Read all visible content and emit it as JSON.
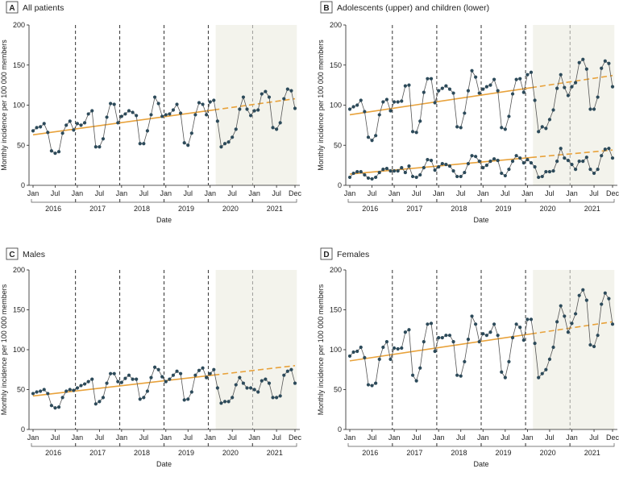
{
  "colors": {
    "points": "#2c4a5a",
    "line": "#555555",
    "trend": "#e8a23b",
    "shade": "#f3f3ec",
    "vline": "#333333"
  },
  "axis": {
    "ylabel": "Monthly incidence per 100 000 members",
    "xlabel": "Date",
    "ylim": [
      0,
      200
    ],
    "yticks": [
      "0",
      "50",
      "100",
      "150",
      "200"
    ],
    "month_ticks": [
      "Jan",
      "Jul",
      "Jan",
      "Jul",
      "Jan",
      "Jul",
      "Jan",
      "Jul",
      "Jan",
      "Jul",
      "Jan",
      "Jul",
      "Dec"
    ],
    "years": [
      "2016",
      "2017",
      "2018",
      "2019",
      "2020",
      "2021"
    ]
  },
  "chart_data": [
    {
      "type": "line",
      "letter": "A",
      "title": "All patients",
      "x_start": "2016-01",
      "x_end": "2021-12",
      "ylim": [
        0,
        200
      ],
      "shaded_period": [
        "2020-03",
        "2021-12"
      ],
      "series": [
        {
          "values": [
            68,
            72,
            73,
            77,
            66,
            43,
            40,
            42,
            65,
            75,
            80,
            69,
            77,
            75,
            78,
            89,
            93,
            48,
            48,
            58,
            85,
            102,
            101,
            78,
            86,
            89,
            93,
            91,
            87,
            52,
            52,
            68,
            88,
            110,
            102,
            86,
            88,
            89,
            94,
            101,
            90,
            53,
            50,
            65,
            88,
            103,
            101,
            88,
            104,
            106,
            80,
            48,
            52,
            54,
            60,
            70,
            95,
            110,
            95,
            87,
            93,
            94,
            114,
            117,
            110,
            72,
            70,
            78,
            108,
            120,
            118,
            96
          ],
          "trend": {
            "start": 63,
            "end": 108
          }
        }
      ]
    },
    {
      "type": "line",
      "letter": "B",
      "title": "Adolescents (upper) and children (lower)",
      "x_start": "2016-01",
      "x_end": "2021-12",
      "ylim": [
        0,
        200
      ],
      "shaded_period": [
        "2020-03",
        "2021-12"
      ],
      "series": [
        {
          "values": [
            95,
            98,
            100,
            106,
            92,
            60,
            56,
            62,
            88,
            104,
            107,
            93,
            104,
            104,
            105,
            124,
            125,
            67,
            66,
            80,
            116,
            133,
            133,
            103,
            118,
            121,
            124,
            120,
            115,
            73,
            72,
            90,
            118,
            143,
            135,
            115,
            120,
            123,
            125,
            132,
            118,
            72,
            70,
            86,
            114,
            132,
            133,
            116,
            138,
            141,
            106,
            67,
            73,
            71,
            82,
            94,
            121,
            138,
            122,
            112,
            123,
            128,
            153,
            157,
            145,
            95,
            95,
            110,
            146,
            155,
            152,
            123
          ],
          "trend": {
            "start": 88,
            "end": 137
          }
        },
        {
          "values": [
            10,
            15,
            17,
            17,
            13,
            9,
            8,
            10,
            16,
            20,
            21,
            18,
            18,
            18,
            22,
            16,
            24,
            11,
            10,
            13,
            22,
            32,
            31,
            19,
            23,
            27,
            26,
            24,
            18,
            11,
            11,
            16,
            27,
            37,
            36,
            30,
            22,
            25,
            30,
            33,
            31,
            15,
            12,
            20,
            30,
            37,
            34,
            28,
            32,
            28,
            23,
            10,
            11,
            17,
            17,
            18,
            30,
            46,
            34,
            31,
            26,
            20,
            30,
            30,
            35,
            20,
            15,
            20,
            37,
            45,
            46,
            34
          ],
          "trend": {
            "start": 14,
            "end": 44
          }
        }
      ]
    },
    {
      "type": "line",
      "letter": "C",
      "title": "Males",
      "x_start": "2016-01",
      "x_end": "2021-12",
      "ylim": [
        0,
        200
      ],
      "shaded_period": [
        "2020-03",
        "2021-12"
      ],
      "series": [
        {
          "values": [
            45,
            47,
            48,
            50,
            45,
            30,
            27,
            28,
            40,
            48,
            50,
            49,
            52,
            55,
            57,
            60,
            63,
            32,
            35,
            40,
            58,
            70,
            70,
            60,
            59,
            64,
            68,
            63,
            63,
            38,
            40,
            48,
            65,
            78,
            75,
            66,
            60,
            63,
            68,
            73,
            70,
            37,
            38,
            47,
            68,
            74,
            77,
            65,
            70,
            75,
            52,
            33,
            35,
            35,
            40,
            56,
            65,
            58,
            52,
            52,
            50,
            47,
            61,
            63,
            58,
            40,
            40,
            42,
            68,
            73,
            75,
            58
          ],
          "trend": {
            "start": 42,
            "end": 80
          }
        }
      ]
    },
    {
      "type": "line",
      "letter": "D",
      "title": "Females",
      "x_start": "2016-01",
      "x_end": "2021-12",
      "ylim": [
        0,
        200
      ],
      "shaded_period": [
        "2020-03",
        "2021-12"
      ],
      "series": [
        {
          "values": [
            92,
            97,
            98,
            103,
            90,
            56,
            55,
            58,
            88,
            103,
            110,
            88,
            102,
            101,
            102,
            122,
            125,
            68,
            61,
            77,
            110,
            132,
            133,
            98,
            115,
            115,
            118,
            118,
            110,
            68,
            67,
            85,
            113,
            142,
            132,
            110,
            120,
            118,
            122,
            132,
            118,
            72,
            65,
            85,
            115,
            132,
            128,
            112,
            138,
            138,
            108,
            65,
            70,
            75,
            88,
            103,
            135,
            155,
            142,
            122,
            133,
            145,
            168,
            175,
            162,
            106,
            104,
            118,
            157,
            171,
            164,
            132
          ],
          "trend": {
            "start": 86,
            "end": 135
          }
        }
      ]
    }
  ]
}
